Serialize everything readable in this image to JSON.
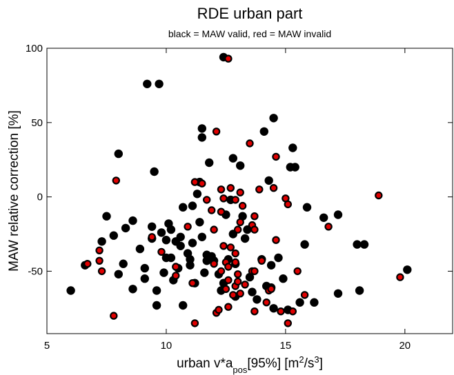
{
  "chart_data": {
    "type": "scatter",
    "title": "RDE urban part",
    "subtitle": "black = MAW valid, red = MAW invalid",
    "xlabel": {
      "base": "urban v*a",
      "sub": "pos",
      "mid": "[95%] [m",
      "sup1": "2",
      "slash": "/s",
      "sup2": "3",
      "end": "]"
    },
    "ylabel": "MAW relative correction [%]",
    "xlim": [
      5,
      22
    ],
    "ylim": [
      -92,
      100
    ],
    "xticks": [
      5,
      10,
      15,
      20
    ],
    "yticks": [
      50,
      0,
      -50,
      100
    ],
    "series": [
      {
        "color": "#000000",
        "points": [
          [
            6.0,
            -63
          ],
          [
            6.6,
            -46
          ],
          [
            7.3,
            -30
          ],
          [
            7.5,
            -13
          ],
          [
            7.8,
            -26
          ],
          [
            8.0,
            29
          ],
          [
            8.0,
            -52
          ],
          [
            8.2,
            -45
          ],
          [
            8.3,
            -21
          ],
          [
            8.6,
            -16
          ],
          [
            8.6,
            -62
          ],
          [
            8.9,
            -35
          ],
          [
            9.1,
            -48
          ],
          [
            9.1,
            -55
          ],
          [
            9.2,
            76
          ],
          [
            9.4,
            -28
          ],
          [
            9.4,
            -20
          ],
          [
            9.5,
            17
          ],
          [
            9.6,
            -63
          ],
          [
            9.7,
            76
          ],
          [
            9.6,
            -73
          ],
          [
            9.8,
            -24
          ],
          [
            9.9,
            -51
          ],
          [
            10.0,
            -29
          ],
          [
            10.0,
            -41
          ],
          [
            10.1,
            -18
          ],
          [
            10.2,
            -22
          ],
          [
            10.2,
            -41
          ],
          [
            10.3,
            -56
          ],
          [
            10.4,
            -30
          ],
          [
            10.5,
            -48
          ],
          [
            10.6,
            -27
          ],
          [
            10.6,
            -33
          ],
          [
            10.7,
            -7
          ],
          [
            10.7,
            -73
          ],
          [
            10.9,
            -38
          ],
          [
            11.0,
            -42
          ],
          [
            11.0,
            -46
          ],
          [
            11.1,
            -6
          ],
          [
            11.1,
            -31
          ],
          [
            11.2,
            -58
          ],
          [
            11.3,
            2
          ],
          [
            11.4,
            10
          ],
          [
            11.4,
            -17
          ],
          [
            11.5,
            46
          ],
          [
            11.5,
            40
          ],
          [
            11.5,
            -27
          ],
          [
            11.6,
            -51
          ],
          [
            11.7,
            -39
          ],
          [
            11.7,
            -43
          ],
          [
            11.8,
            23
          ],
          [
            11.9,
            -40
          ],
          [
            12.0,
            -43
          ],
          [
            12.2,
            -52
          ],
          [
            12.3,
            -63
          ],
          [
            12.4,
            94
          ],
          [
            12.4,
            -58
          ],
          [
            12.5,
            -12
          ],
          [
            12.6,
            -42
          ],
          [
            12.7,
            -2
          ],
          [
            12.8,
            26
          ],
          [
            12.8,
            -25
          ],
          [
            12.9,
            -45
          ],
          [
            12.9,
            -67
          ],
          [
            13.1,
            21
          ],
          [
            13.2,
            -13
          ],
          [
            13.3,
            -28
          ],
          [
            13.4,
            -22
          ],
          [
            13.5,
            -54
          ],
          [
            13.6,
            -64
          ],
          [
            13.8,
            -69
          ],
          [
            14.0,
            -42
          ],
          [
            14.1,
            44
          ],
          [
            14.2,
            -60
          ],
          [
            14.3,
            11
          ],
          [
            14.4,
            -46
          ],
          [
            14.4,
            -61
          ],
          [
            14.5,
            53
          ],
          [
            14.5,
            -75
          ],
          [
            14.7,
            -41
          ],
          [
            14.9,
            -55
          ],
          [
            15.1,
            -76
          ],
          [
            15.2,
            20
          ],
          [
            15.3,
            33
          ],
          [
            15.4,
            20
          ],
          [
            15.6,
            -71
          ],
          [
            15.8,
            -32
          ],
          [
            15.9,
            -7
          ],
          [
            16.2,
            -71
          ],
          [
            16.6,
            -14
          ],
          [
            17.2,
            -12
          ],
          [
            17.2,
            -65
          ],
          [
            18.0,
            -32
          ],
          [
            18.1,
            -63
          ],
          [
            18.3,
            -32
          ],
          [
            20.1,
            -49
          ]
        ]
      },
      {
        "color": "#e00000",
        "points": [
          [
            6.7,
            -45
          ],
          [
            7.2,
            -36
          ],
          [
            7.2,
            -43
          ],
          [
            7.3,
            -50
          ],
          [
            7.8,
            -80
          ],
          [
            7.9,
            11
          ],
          [
            9.4,
            -27
          ],
          [
            9.8,
            -37
          ],
          [
            10.4,
            -53
          ],
          [
            10.4,
            -47
          ],
          [
            10.9,
            -20
          ],
          [
            11.1,
            -58
          ],
          [
            11.2,
            10
          ],
          [
            11.2,
            -85
          ],
          [
            11.5,
            9
          ],
          [
            11.7,
            -2
          ],
          [
            11.9,
            -9
          ],
          [
            12.0,
            -45
          ],
          [
            12.0,
            -22
          ],
          [
            12.1,
            44
          ],
          [
            12.1,
            -78
          ],
          [
            12.2,
            -76
          ],
          [
            12.3,
            5
          ],
          [
            12.3,
            -10
          ],
          [
            12.3,
            -50
          ],
          [
            12.4,
            -1
          ],
          [
            12.4,
            -33
          ],
          [
            12.5,
            -44
          ],
          [
            12.5,
            -62
          ],
          [
            12.6,
            93
          ],
          [
            12.6,
            -47
          ],
          [
            12.6,
            -56
          ],
          [
            12.6,
            -74
          ],
          [
            12.7,
            6
          ],
          [
            12.7,
            -34
          ],
          [
            12.8,
            -66
          ],
          [
            12.9,
            -2
          ],
          [
            12.9,
            -38
          ],
          [
            12.9,
            -44
          ],
          [
            12.9,
            -60
          ],
          [
            13.0,
            -22
          ],
          [
            13.0,
            -52
          ],
          [
            13.0,
            -57
          ],
          [
            13.1,
            3
          ],
          [
            13.1,
            -17
          ],
          [
            13.1,
            -65
          ],
          [
            13.2,
            -6
          ],
          [
            13.3,
            -59
          ],
          [
            13.5,
            36
          ],
          [
            13.6,
            -19
          ],
          [
            13.6,
            -50
          ],
          [
            13.7,
            -13
          ],
          [
            13.7,
            -22
          ],
          [
            13.7,
            -50
          ],
          [
            13.7,
            -77
          ],
          [
            13.9,
            5
          ],
          [
            14.0,
            -43
          ],
          [
            14.3,
            -63
          ],
          [
            14.2,
            -71
          ],
          [
            14.4,
            -62
          ],
          [
            14.5,
            6
          ],
          [
            14.6,
            27
          ],
          [
            14.6,
            -29
          ],
          [
            14.8,
            -77
          ],
          [
            15.0,
            -1
          ],
          [
            15.1,
            -5
          ],
          [
            15.1,
            -85
          ],
          [
            15.3,
            -77
          ],
          [
            15.5,
            -50
          ],
          [
            15.8,
            -66
          ],
          [
            16.8,
            -20
          ],
          [
            18.9,
            1
          ],
          [
            19.8,
            -54
          ]
        ]
      }
    ]
  }
}
